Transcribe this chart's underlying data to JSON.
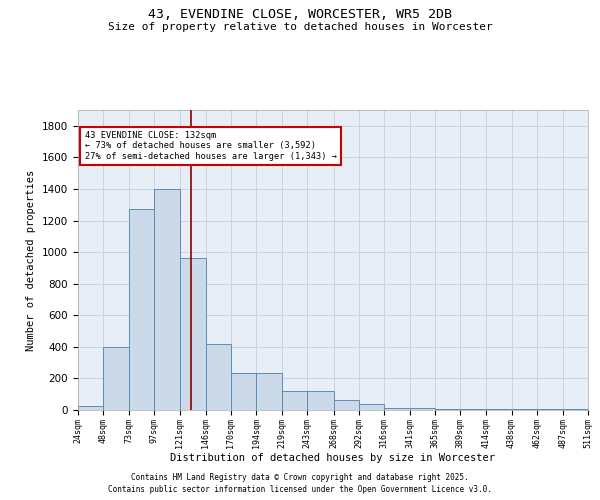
{
  "title1": "43, EVENDINE CLOSE, WORCESTER, WR5 2DB",
  "title2": "Size of property relative to detached houses in Worcester",
  "xlabel": "Distribution of detached houses by size in Worcester",
  "ylabel": "Number of detached properties",
  "bin_edges": [
    24,
    48,
    73,
    97,
    121,
    146,
    170,
    194,
    219,
    243,
    268,
    292,
    316,
    341,
    365,
    389,
    414,
    438,
    462,
    487,
    511
  ],
  "bar_heights": [
    25,
    400,
    1270,
    1400,
    960,
    420,
    235,
    235,
    120,
    120,
    65,
    40,
    15,
    10,
    5,
    5,
    5,
    5,
    5,
    5
  ],
  "bar_color": "#ccd9e8",
  "bar_edge_color": "#5b8db8",
  "ylim": [
    0,
    1900
  ],
  "red_line_x": 132,
  "ann_line1": "43 EVENDINE CLOSE: 132sqm",
  "ann_line2": "← 73% of detached houses are smaller (3,592)",
  "ann_line3": "27% of semi-detached houses are larger (1,343) →",
  "annotation_box_color": "#ffffff",
  "annotation_box_edge_color": "#cc0000",
  "grid_color": "#c8d4e4",
  "background_color": "#e8eef6",
  "footer1": "Contains HM Land Registry data © Crown copyright and database right 2025.",
  "footer2": "Contains public sector information licensed under the Open Government Licence v3.0."
}
